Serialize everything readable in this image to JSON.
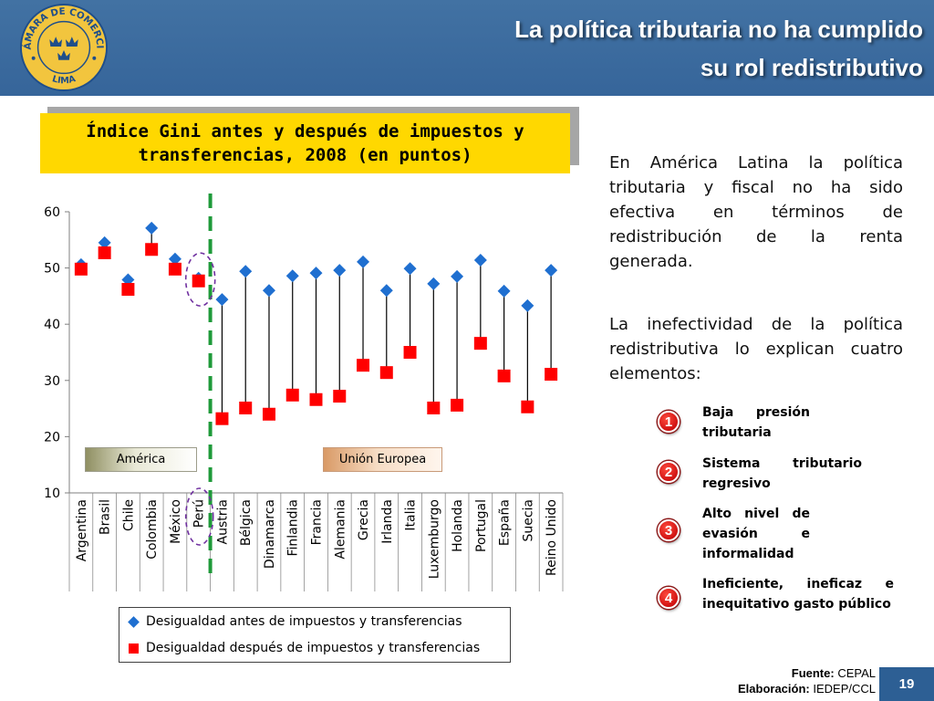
{
  "header": {
    "logo_text_top": "CÁMARA DE COMERCIO",
    "logo_text_bottom": "LIMA",
    "title_line1": "La política tributaria no ha cumplido",
    "title_line2": "su rol redistributivo"
  },
  "chart_data": {
    "type": "scatter",
    "title": "Índice Gini antes y después de impuestos y transferencias, 2008 (en puntos)",
    "categories": [
      "Argentina",
      "Brasil",
      "Chile",
      "Colombia",
      "México",
      "Perú",
      "Austria",
      "Bélgica",
      "Dinamarca",
      "Finlandia",
      "Francia",
      "Alemania",
      "Grecia",
      "Irlanda",
      "Italia",
      "Luxemburgo",
      "Holanda",
      "Portugal",
      "España",
      "Suecia",
      "Reino Unido"
    ],
    "series": [
      {
        "name": "Desigualdad antes de impuestos y transferencias",
        "marker": "diamond",
        "color": "#1f6fd0",
        "values": [
          50.6,
          54.5,
          47.9,
          57.1,
          51.6,
          48.2,
          44.4,
          49.4,
          46.0,
          48.6,
          49.1,
          49.6,
          51.1,
          46.0,
          49.9,
          47.2,
          48.5,
          51.4,
          45.9,
          43.3,
          49.6
        ]
      },
      {
        "name": "Desigualdad después de impuestos y transferencias",
        "marker": "square",
        "color": "#ff0000",
        "values": [
          49.8,
          52.7,
          46.2,
          53.3,
          49.8,
          47.7,
          23.2,
          25.1,
          24.0,
          27.4,
          26.6,
          27.2,
          32.7,
          31.4,
          35.0,
          25.1,
          25.6,
          36.6,
          30.8,
          25.3,
          31.1
        ]
      }
    ],
    "ylim": [
      10,
      60
    ],
    "yticks": [
      10,
      20,
      30,
      40,
      50,
      60
    ],
    "groups": [
      {
        "label": "América",
        "from_index": 0,
        "to_index": 5
      },
      {
        "label": "Unión Europea",
        "from_index": 6,
        "to_index": 20
      }
    ],
    "highlighted_index": 5,
    "grid": false,
    "legend": "bottom"
  },
  "text": {
    "paragraph_1": "En América Latina la política tributaria y fiscal no ha sido efectiva en términos de redistribución de la renta generada.",
    "paragraph_2": "La inefectividad de la política redistributiva lo explican cuatro elementos:",
    "elements": [
      {
        "number": "1",
        "label": "Baja presión tributaria"
      },
      {
        "number": "2",
        "label": "Sistema tributario regresivo"
      },
      {
        "number": "3",
        "label": "Alto nivel de evasión e informalidad"
      },
      {
        "number": "4",
        "label": "Ineficiente, ineficaz e inequitativo gasto público"
      }
    ]
  },
  "footer": {
    "source_label": "Fuente:",
    "source": "CEPAL",
    "made_by_label": "Elaboración:",
    "made_by": "IEDEP/CCL",
    "page_number": "19"
  },
  "colors": {
    "header_bg": "#3a6a9d",
    "title_box": "#ffd800",
    "group_divider": "#1f9a3a",
    "highlight_ellipse": "#7030a0",
    "badge": "#d01212"
  }
}
